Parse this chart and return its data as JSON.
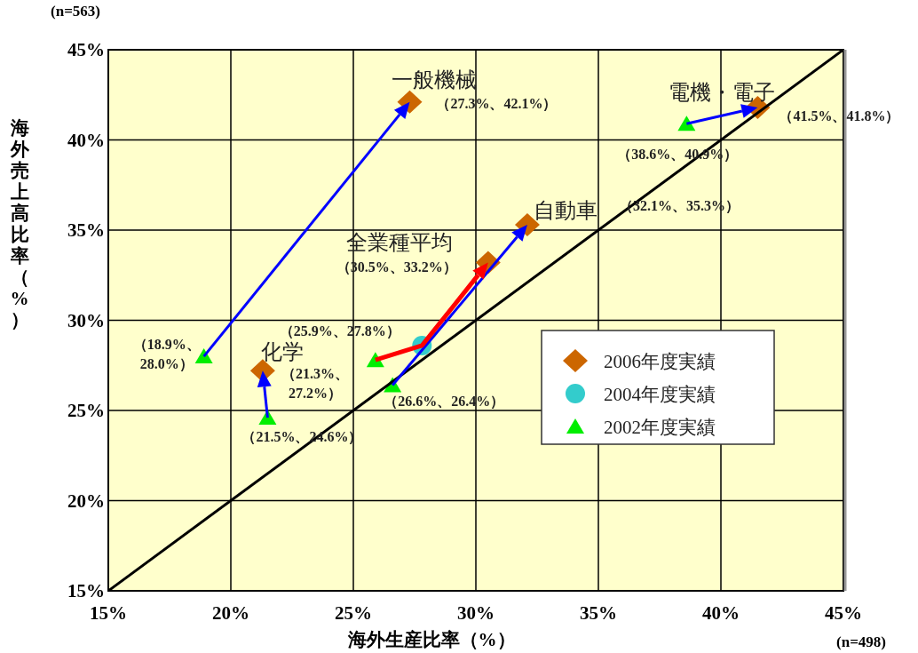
{
  "chart_data": {
    "type": "scatter",
    "xlabel": "海外生産比率（%）",
    "ylabel": "海外売上高比率（%）",
    "xlim": [
      15,
      45
    ],
    "ylim": [
      15,
      45
    ],
    "xticks": [
      {
        "value": 15,
        "label": "15%"
      },
      {
        "value": 20,
        "label": "20%"
      },
      {
        "value": 25,
        "label": "25%"
      },
      {
        "value": 30,
        "label": "30%"
      },
      {
        "value": 35,
        "label": "35%"
      },
      {
        "value": 40,
        "label": "40%"
      },
      {
        "value": 45,
        "label": "45%"
      }
    ],
    "yticks": [
      {
        "value": 15,
        "label": "15%"
      },
      {
        "value": 20,
        "label": "20%"
      },
      {
        "value": 25,
        "label": "25%"
      },
      {
        "value": 30,
        "label": "30%"
      },
      {
        "value": 35,
        "label": "35%"
      },
      {
        "value": 40,
        "label": "40%"
      },
      {
        "value": 45,
        "label": "45%"
      }
    ],
    "grid": true,
    "legend": "right",
    "series": [
      {
        "type": "line",
        "color": "#000000",
        "x": [
          15,
          45
        ],
        "values": [
          15,
          45
        ],
        "marker": "none"
      },
      {
        "name": "2006年度実績",
        "color": "#cc6600",
        "marker": "diamond",
        "x": [
          27.3,
          21.3,
          41.5,
          32.1,
          30.5
        ],
        "values": [
          42.1,
          27.2,
          41.8,
          35.3,
          33.2
        ]
      },
      {
        "name": "2004年度実績",
        "color": "#33cccc",
        "marker": "circle",
        "x": [
          null,
          null,
          null,
          null,
          27.8
        ],
        "values": [
          null,
          null,
          null,
          null,
          28.6
        ]
      },
      {
        "name": "2002年度実績",
        "color": "#00ee00",
        "marker": "triangle",
        "x": [
          18.9,
          21.5,
          38.6,
          26.6,
          25.9
        ],
        "values": [
          28.0,
          24.6,
          40.9,
          26.4,
          27.8
        ]
      }
    ],
    "annotations": [
      {
        "text": "一般機械",
        "x": 27.3,
        "y": 42.1
      },
      {
        "text": "（27.3%、42.1%）",
        "x": 27.3,
        "y": 42.1
      },
      {
        "text": "電機・電子",
        "x": 41.5,
        "y": 41.8
      },
      {
        "text": "（41.5%、41.8%）",
        "x": 41.5,
        "y": 41.8
      },
      {
        "text": "（38.6%、40.9%）",
        "x": 38.6,
        "y": 40.9
      },
      {
        "text": "自動車",
        "x": 32.1,
        "y": 35.3
      },
      "（32.1%、35.3%）",
      {
        "text": "全業種平均",
        "x": 30.5,
        "y": 33.2
      },
      {
        "text": "（30.5%、33.2%）",
        "x": 30.5,
        "y": 33.2
      },
      {
        "text": "（25.9%、27.8%）",
        "x": 25.9,
        "y": 27.8
      },
      {
        "text": "（26.6%、26.4%）",
        "x": 26.6,
        "y": 26.4
      },
      {
        "text": "化学",
        "x": 21.3,
        "y": 27.2
      },
      {
        "text": "（21.3%、\n27.2%）",
        "x": 21.3,
        "y": 27.2
      },
      {
        "text": "（21.5%、24.6%）",
        "x": 21.5,
        "y": 24.6
      },
      {
        "text": "（18.9%、\n28.0%）",
        "x": 18.9,
        "y": 28.0
      },
      "(n=563)",
      "(n=498)"
    ]
  }
}
